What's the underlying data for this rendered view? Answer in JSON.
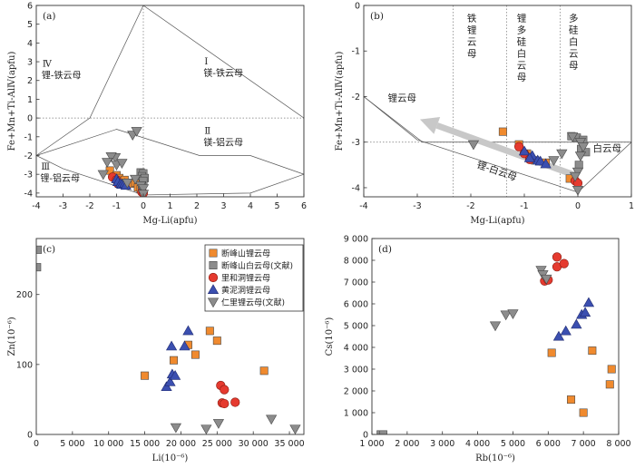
{
  "figure": {
    "legend": [
      {
        "label": "断峰山锂云母",
        "marker": "square",
        "color": "#f08a2e"
      },
      {
        "label": "断峰山白云母(文献)",
        "marker": "square",
        "color": "#8c8c8c"
      },
      {
        "label": "里和洞锂云母",
        "marker": "circle",
        "color": "#e53a2f"
      },
      {
        "label": "黄泥洞锂云母",
        "marker": "triangle-up",
        "color": "#3b4fb0"
      },
      {
        "label": "仁里锂云母(文献)",
        "marker": "triangle-down",
        "color": "#8c8c8c"
      }
    ]
  },
  "chart_data": [
    {
      "id": "a",
      "type": "scatter",
      "panel_label": "(a)",
      "xlabel": "Mg-Li(apfu)",
      "ylabel": "Fe+Mn+Ti-AlⅣ(apfu)",
      "xlim": [
        -4,
        6
      ],
      "ylim": [
        -4.2,
        6
      ],
      "xticks": [
        -4,
        -3,
        -2,
        -1,
        0,
        1,
        2,
        3,
        4,
        5,
        6
      ],
      "yticks": [
        -4,
        -3,
        -2,
        -1,
        0,
        1,
        2,
        3,
        4,
        5,
        6
      ],
      "regions": [
        {
          "roman": "Ⅳ",
          "name": "锂-铁云母",
          "x": -3.8,
          "y": 2.7
        },
        {
          "roman": "Ⅰ",
          "name": "镁-铁云母",
          "x": 2.25,
          "y": 2.8
        },
        {
          "roman": "Ⅱ",
          "name": "镁-铝云母",
          "x": 2.25,
          "y": -0.9
        },
        {
          "roman": "Ⅲ",
          "name": "锂-铝云母",
          "x": -3.85,
          "y": -2.8
        }
      ],
      "boundary_lines": [
        [
          [
            -4,
            -2
          ],
          [
            -2,
            0
          ],
          [
            0,
            6
          ],
          [
            6,
            0
          ],
          [
            6,
            -3
          ],
          [
            4,
            -4
          ],
          [
            0,
            -4.1
          ]
        ],
        [
          [
            -4,
            -2
          ],
          [
            -1,
            -0.6
          ],
          [
            2.1,
            -2
          ],
          [
            4,
            -2
          ],
          [
            6,
            -3
          ]
        ],
        [
          [
            -4,
            -2
          ],
          [
            -3,
            -2.7
          ],
          [
            0,
            -4.1
          ]
        ]
      ],
      "reference_lines": [
        {
          "orientation": "vertical",
          "value": 0
        },
        {
          "orientation": "horizontal",
          "value": 0
        }
      ],
      "series": [
        {
          "legend_index": 0,
          "points": [
            [
              -1.25,
              -2.8
            ],
            [
              -1.0,
              -3.05
            ],
            [
              -0.9,
              -3.2
            ],
            [
              -0.7,
              -3.3
            ],
            [
              -0.55,
              -3.45
            ],
            [
              -0.4,
              -3.5
            ],
            [
              -0.3,
              -3.45
            ],
            [
              -0.2,
              -3.7
            ],
            [
              -0.1,
              -3.8
            ]
          ]
        },
        {
          "legend_index": 1,
          "points": [
            [
              -0.1,
              -2.9
            ],
            [
              0.0,
              -2.95
            ],
            [
              -0.05,
              -3.1
            ],
            [
              0.05,
              -3.2
            ],
            [
              0.0,
              -3.35
            ],
            [
              -0.05,
              -3.6
            ]
          ]
        },
        {
          "legend_index": 2,
          "points": [
            [
              -1.15,
              -3.15
            ],
            [
              -1.0,
              -3.3
            ],
            [
              -0.95,
              -3.5
            ],
            [
              -0.05,
              -3.95
            ],
            [
              0.0,
              -4.0
            ]
          ]
        },
        {
          "legend_index": 3,
          "points": [
            [
              -1.0,
              -3.25
            ],
            [
              -0.95,
              -3.4
            ],
            [
              -0.85,
              -3.5
            ],
            [
              -0.8,
              -3.55
            ],
            [
              -0.7,
              -3.5
            ],
            [
              -0.65,
              -3.6
            ]
          ]
        },
        {
          "legend_index": 4,
          "points": [
            [
              -0.4,
              -0.9
            ],
            [
              -0.25,
              -0.7
            ],
            [
              -1.05,
              -2.1
            ],
            [
              -1.2,
              -2.05
            ],
            [
              -1.35,
              -2.35
            ],
            [
              -1.0,
              -2.5
            ],
            [
              -0.8,
              -2.4
            ],
            [
              -1.5,
              -3.0
            ],
            [
              -0.1,
              -3.6
            ],
            [
              0.0,
              -3.75
            ],
            [
              -0.3,
              -3.25
            ],
            [
              -0.6,
              -3.45
            ],
            [
              0.0,
              -4.05
            ]
          ]
        }
      ]
    },
    {
      "id": "b",
      "type": "scatter",
      "panel_label": "(b)",
      "xlabel": "Mg-Li(apfu)",
      "ylabel": "Fe+Mn+Ti-AlⅣ(apfu)",
      "xlim": [
        -4,
        1
      ],
      "ylim": [
        -4.2,
        0
      ],
      "xticks": [
        -4,
        -3,
        -2,
        -1,
        0,
        1
      ],
      "yticks": [
        -4,
        -3,
        -2,
        -1,
        0
      ],
      "region_labels": [
        {
          "text": "锂云母",
          "x": -3.55,
          "y": -2.1
        },
        {
          "text": "铁锂云母",
          "x": -1.98,
          "y": -0.35,
          "vertical": true
        },
        {
          "text": "锂多硅白云母",
          "x": -1.05,
          "y": -0.35,
          "vertical": true
        },
        {
          "text": "多硅白云母",
          "x": -0.08,
          "y": -0.35,
          "vertical": true
        },
        {
          "text": "白云母",
          "x": 0.28,
          "y": -3.2
        },
        {
          "text": "锂-白云母",
          "x": -1.9,
          "y": -3.55,
          "rotate": 19
        }
      ],
      "boundary_lines": [
        [
          [
            -4,
            -2
          ],
          [
            -3,
            -2.95
          ],
          [
            0,
            -4.1
          ],
          [
            1,
            -3.0
          ]
        ],
        [
          [
            -4,
            -2
          ],
          [
            -2.9,
            -3.0
          ],
          [
            1,
            -3.0
          ]
        ]
      ],
      "reference_lines": [
        {
          "orientation": "vertical",
          "value": -2.33
        },
        {
          "orientation": "vertical",
          "value": -1.33
        },
        {
          "orientation": "vertical",
          "value": -0.33
        },
        {
          "orientation": "horizontal",
          "value": -3.0
        }
      ],
      "arrow": {
        "from": [
          0.0,
          -3.75
        ],
        "to": [
          -2.95,
          -2.5
        ]
      },
      "series": [
        {
          "legend_index": 0,
          "points": [
            [
              -1.4,
              -2.77
            ],
            [
              -1.1,
              -3.05
            ],
            [
              -0.95,
              -3.25
            ],
            [
              -0.8,
              -3.4
            ],
            [
              -0.6,
              -3.45
            ],
            [
              -0.15,
              -3.8
            ]
          ]
        },
        {
          "legend_index": 1,
          "points": [
            [
              -0.12,
              -2.87
            ],
            [
              -0.02,
              -2.9
            ],
            [
              0.1,
              -2.95
            ],
            [
              0.06,
              -3.15
            ],
            [
              0.15,
              -3.22
            ],
            [
              0.02,
              -3.5
            ]
          ]
        },
        {
          "legend_index": 2,
          "points": [
            [
              -1.1,
              -3.1
            ],
            [
              -1.0,
              -3.25
            ],
            [
              -0.9,
              -3.38
            ],
            [
              -0.05,
              -3.85
            ],
            [
              0.0,
              -3.9
            ]
          ]
        },
        {
          "legend_index": 3,
          "points": [
            [
              -1.0,
              -3.2
            ],
            [
              -0.85,
              -3.3
            ],
            [
              -0.75,
              -3.4
            ],
            [
              -0.7,
              -3.42
            ],
            [
              -0.6,
              -3.48
            ],
            [
              -0.9,
              -3.35
            ]
          ]
        },
        {
          "legend_index": 4,
          "points": [
            [
              -1.95,
              -3.05
            ],
            [
              -0.1,
              -2.88
            ],
            [
              0.05,
              -3.0
            ],
            [
              0.1,
              -3.1
            ],
            [
              -0.3,
              -3.25
            ],
            [
              -0.45,
              -3.4
            ],
            [
              0.05,
              -3.3
            ],
            [
              0.0,
              -3.65
            ],
            [
              -0.05,
              -3.75
            ],
            [
              0.0,
              -4.05
            ]
          ]
        }
      ]
    },
    {
      "id": "c",
      "type": "scatter",
      "panel_label": "(c)",
      "xlabel": "Li(10⁻⁶)",
      "ylabel": "Zn(10⁻⁶)",
      "xlim": [
        0,
        37000
      ],
      "ylim": [
        0,
        280
      ],
      "xticks": [
        0,
        5000,
        10000,
        15000,
        20000,
        25000,
        30000,
        35000
      ],
      "xtick_labels": [
        "0",
        "5 000",
        "10 000",
        "15 000",
        "20 000",
        "25 000",
        "30 000",
        "35 000"
      ],
      "yticks": [
        0,
        100,
        200
      ],
      "legend_placement": "top-center",
      "series": [
        {
          "legend_index": 0,
          "points": [
            [
              15000,
              84
            ],
            [
              19000,
              106
            ],
            [
              21000,
              128
            ],
            [
              22000,
              114
            ],
            [
              24000,
              148
            ],
            [
              25000,
              134
            ],
            [
              31500,
              91
            ]
          ]
        },
        {
          "legend_index": 1,
          "points": [
            [
              200,
              264
            ],
            [
              100,
              239
            ]
          ]
        },
        {
          "legend_index": 2,
          "points": [
            [
              25500,
              70
            ],
            [
              26000,
              64
            ],
            [
              25700,
              45
            ],
            [
              26000,
              44
            ],
            [
              27500,
              46
            ]
          ]
        },
        {
          "legend_index": 3,
          "points": [
            [
              18000,
              68
            ],
            [
              18500,
              75
            ],
            [
              18800,
              86
            ],
            [
              19200,
              84
            ],
            [
              18700,
              126
            ],
            [
              20500,
              126
            ],
            [
              21000,
              148
            ]
          ]
        },
        {
          "legend_index": 4,
          "points": [
            [
              19300,
              10
            ],
            [
              23500,
              8
            ],
            [
              25200,
              16
            ],
            [
              32500,
              22
            ],
            [
              35800,
              8
            ]
          ]
        }
      ]
    },
    {
      "id": "d",
      "type": "scatter",
      "panel_label": "(d)",
      "xlabel": "Rb(10⁻⁶)",
      "ylabel": "Cs(10⁻⁶)",
      "xlim": [
        1000,
        8000
      ],
      "ylim": [
        0,
        9000
      ],
      "xticks": [
        1000,
        2000,
        3000,
        4000,
        5000,
        6000,
        7000,
        8000
      ],
      "xtick_labels": [
        "1 000",
        "2 000",
        "3 000",
        "4 000",
        "5 000",
        "6 000",
        "7 000",
        "8 000"
      ],
      "yticks": [
        0,
        1000,
        2000,
        3000,
        4000,
        5000,
        6000,
        7000,
        8000,
        9000
      ],
      "ytick_labels": [
        "0",
        "1 000",
        "2 000",
        "3 000",
        "4 000",
        "5 000",
        "6 000",
        "7 000",
        "8 000",
        "9 000"
      ],
      "series": [
        {
          "legend_index": 0,
          "points": [
            [
              6100,
              3750
            ],
            [
              6650,
              1600
            ],
            [
              7000,
              1000
            ],
            [
              7250,
              3850
            ],
            [
              7800,
              3000
            ],
            [
              7750,
              2300
            ]
          ]
        },
        {
          "legend_index": 1,
          "points": [
            [
              1250,
              0
            ],
            [
              1320,
              0
            ]
          ]
        },
        {
          "legend_index": 2,
          "points": [
            [
              5900,
              7050
            ],
            [
              6000,
              7100
            ],
            [
              6250,
              8150
            ],
            [
              6250,
              7700
            ],
            [
              6450,
              7850
            ]
          ]
        },
        {
          "legend_index": 3,
          "points": [
            [
              6300,
              4500
            ],
            [
              6500,
              4750
            ],
            [
              6800,
              5050
            ],
            [
              6950,
              5500
            ],
            [
              7050,
              5600
            ],
            [
              7150,
              6050
            ]
          ]
        },
        {
          "legend_index": 4,
          "points": [
            [
              4500,
              5000
            ],
            [
              4800,
              5500
            ],
            [
              5000,
              5550
            ],
            [
              5800,
              7550
            ],
            [
              5850,
              7350
            ],
            [
              5950,
              7150
            ]
          ]
        }
      ]
    }
  ]
}
